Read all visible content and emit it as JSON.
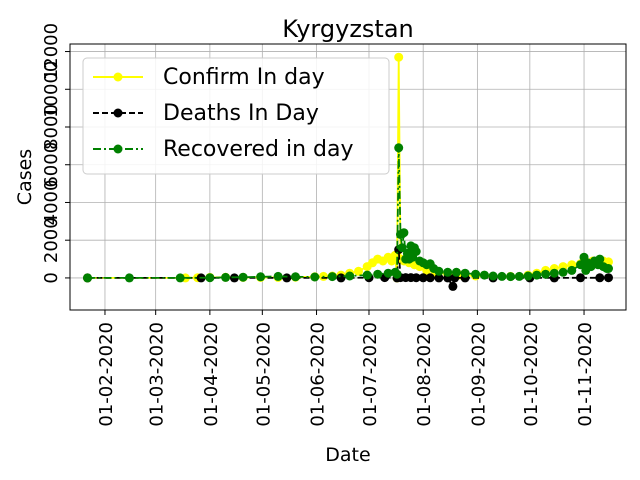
{
  "chart_data": {
    "type": "line",
    "title": "Kyrgyzstan",
    "xlabel": "Date",
    "ylabel": "Cases",
    "grid": true,
    "legend_position": "top-left",
    "x_range": [
      "2020-01-12",
      "2020-11-25"
    ],
    "y_range": [
      -1700,
      12400
    ],
    "x_ticks": [
      "2020-02-01",
      "2020-03-01",
      "2020-04-01",
      "2020-05-01",
      "2020-06-01",
      "2020-07-01",
      "2020-08-01",
      "2020-09-01",
      "2020-10-01",
      "2020-11-01"
    ],
    "x_tick_labels": [
      "01-02-2020",
      "01-03-2020",
      "01-04-2020",
      "01-05-2020",
      "01-06-2020",
      "01-07-2020",
      "01-08-2020",
      "01-09-2020",
      "01-10-2020",
      "01-11-2020"
    ],
    "y_ticks": [
      0,
      2000,
      4000,
      6000,
      8000,
      10000,
      12000
    ],
    "y_tick_labels": [
      "0",
      "2000",
      "4000",
      "6000",
      "8000",
      "10000",
      "12000"
    ],
    "series": [
      {
        "name": "Confirm In day",
        "color": "#ffff00",
        "line_style": "solid",
        "points": [
          [
            "2020-01-22",
            0
          ],
          [
            "2020-03-18",
            3
          ],
          [
            "2020-03-25",
            10
          ],
          [
            "2020-04-01",
            30
          ],
          [
            "2020-04-10",
            35
          ],
          [
            "2020-04-20",
            30
          ],
          [
            "2020-04-30",
            25
          ],
          [
            "2020-05-10",
            30
          ],
          [
            "2020-05-20",
            40
          ],
          [
            "2020-05-31",
            60
          ],
          [
            "2020-06-05",
            80
          ],
          [
            "2020-06-10",
            100
          ],
          [
            "2020-06-15",
            150
          ],
          [
            "2020-06-20",
            250
          ],
          [
            "2020-06-25",
            350
          ],
          [
            "2020-06-30",
            600
          ],
          [
            "2020-07-03",
            800
          ],
          [
            "2020-07-06",
            1000
          ],
          [
            "2020-07-09",
            900
          ],
          [
            "2020-07-12",
            1100
          ],
          [
            "2020-07-14",
            900
          ],
          [
            "2020-07-16",
            1200
          ],
          [
            "2020-07-17",
            0
          ],
          [
            "2020-07-18",
            11700
          ],
          [
            "2020-07-19",
            1000
          ],
          [
            "2020-07-21",
            900
          ],
          [
            "2020-07-24",
            800
          ],
          [
            "2020-07-27",
            700
          ],
          [
            "2020-07-30",
            600
          ],
          [
            "2020-08-03",
            400
          ],
          [
            "2020-08-08",
            300
          ],
          [
            "2020-08-15",
            200
          ],
          [
            "2020-08-22",
            150
          ],
          [
            "2020-08-31",
            100
          ],
          [
            "2020-09-10",
            80
          ],
          [
            "2020-09-20",
            80
          ],
          [
            "2020-09-30",
            150
          ],
          [
            "2020-10-05",
            250
          ],
          [
            "2020-10-10",
            400
          ],
          [
            "2020-10-15",
            500
          ],
          [
            "2020-10-20",
            600
          ],
          [
            "2020-10-25",
            700
          ],
          [
            "2020-10-30",
            750
          ],
          [
            "2020-11-03",
            800
          ],
          [
            "2020-11-06",
            900
          ],
          [
            "2020-11-09",
            800
          ],
          [
            "2020-11-12",
            900
          ],
          [
            "2020-11-15",
            850
          ]
        ]
      },
      {
        "name": "Deaths In Day",
        "color": "#000000",
        "line_style": "dashed",
        "points": [
          [
            "2020-01-22",
            0
          ],
          [
            "2020-03-27",
            0
          ],
          [
            "2020-04-15",
            1
          ],
          [
            "2020-05-15",
            1
          ],
          [
            "2020-06-15",
            3
          ],
          [
            "2020-07-01",
            10
          ],
          [
            "2020-07-10",
            15
          ],
          [
            "2020-07-17",
            0
          ],
          [
            "2020-07-18",
            1500
          ],
          [
            "2020-07-19",
            20
          ],
          [
            "2020-07-22",
            20
          ],
          [
            "2020-07-25",
            15
          ],
          [
            "2020-07-28",
            10
          ],
          [
            "2020-08-01",
            8
          ],
          [
            "2020-08-05",
            5
          ],
          [
            "2020-08-10",
            3
          ],
          [
            "2020-08-15",
            2
          ],
          [
            "2020-08-18",
            -450
          ],
          [
            "2020-08-19",
            2
          ],
          [
            "2020-08-25",
            2
          ],
          [
            "2020-09-10",
            1
          ],
          [
            "2020-10-01",
            2
          ],
          [
            "2020-10-15",
            3
          ],
          [
            "2020-10-30",
            5
          ],
          [
            "2020-11-10",
            8
          ],
          [
            "2020-11-15",
            10
          ]
        ]
      },
      {
        "name": "Recovered in day",
        "color": "#008000",
        "line_style": "dashdot",
        "points": [
          [
            "2020-01-22",
            0
          ],
          [
            "2020-02-15",
            0
          ],
          [
            "2020-03-15",
            0
          ],
          [
            "2020-04-01",
            10
          ],
          [
            "2020-04-10",
            30
          ],
          [
            "2020-04-20",
            40
          ],
          [
            "2020-04-30",
            60
          ],
          [
            "2020-05-10",
            80
          ],
          [
            "2020-05-20",
            60
          ],
          [
            "2020-05-31",
            50
          ],
          [
            "2020-06-10",
            70
          ],
          [
            "2020-06-20",
            100
          ],
          [
            "2020-06-30",
            150
          ],
          [
            "2020-07-06",
            200
          ],
          [
            "2020-07-12",
            250
          ],
          [
            "2020-07-16",
            300
          ],
          [
            "2020-07-17",
            200
          ],
          [
            "2020-07-18",
            6900
          ],
          [
            "2020-07-19",
            2300
          ],
          [
            "2020-07-20",
            1600
          ],
          [
            "2020-07-21",
            2400
          ],
          [
            "2020-07-22",
            1000
          ],
          [
            "2020-07-23",
            1300
          ],
          [
            "2020-07-24",
            1000
          ],
          [
            "2020-07-25",
            1700
          ],
          [
            "2020-07-26",
            1100
          ],
          [
            "2020-07-27",
            1600
          ],
          [
            "2020-07-28",
            1400
          ],
          [
            "2020-07-30",
            900
          ],
          [
            "2020-08-01",
            800
          ],
          [
            "2020-08-03",
            700
          ],
          [
            "2020-08-05",
            750
          ],
          [
            "2020-08-07",
            500
          ],
          [
            "2020-08-10",
            350
          ],
          [
            "2020-08-15",
            300
          ],
          [
            "2020-08-20",
            300
          ],
          [
            "2020-08-25",
            250
          ],
          [
            "2020-08-31",
            200
          ],
          [
            "2020-09-05",
            150
          ],
          [
            "2020-09-10",
            100
          ],
          [
            "2020-09-15",
            80
          ],
          [
            "2020-09-20",
            70
          ],
          [
            "2020-09-25",
            80
          ],
          [
            "2020-09-30",
            100
          ],
          [
            "2020-10-05",
            150
          ],
          [
            "2020-10-10",
            200
          ],
          [
            "2020-10-15",
            250
          ],
          [
            "2020-10-20",
            300
          ],
          [
            "2020-10-25",
            400
          ],
          [
            "2020-10-30",
            700
          ],
          [
            "2020-11-01",
            1100
          ],
          [
            "2020-11-02",
            400
          ],
          [
            "2020-11-03",
            800
          ],
          [
            "2020-11-05",
            600
          ],
          [
            "2020-11-07",
            900
          ],
          [
            "2020-11-09",
            700
          ],
          [
            "2020-11-10",
            1000
          ],
          [
            "2020-11-12",
            600
          ],
          [
            "2020-11-14",
            500
          ],
          [
            "2020-11-15",
            500
          ]
        ]
      }
    ]
  }
}
